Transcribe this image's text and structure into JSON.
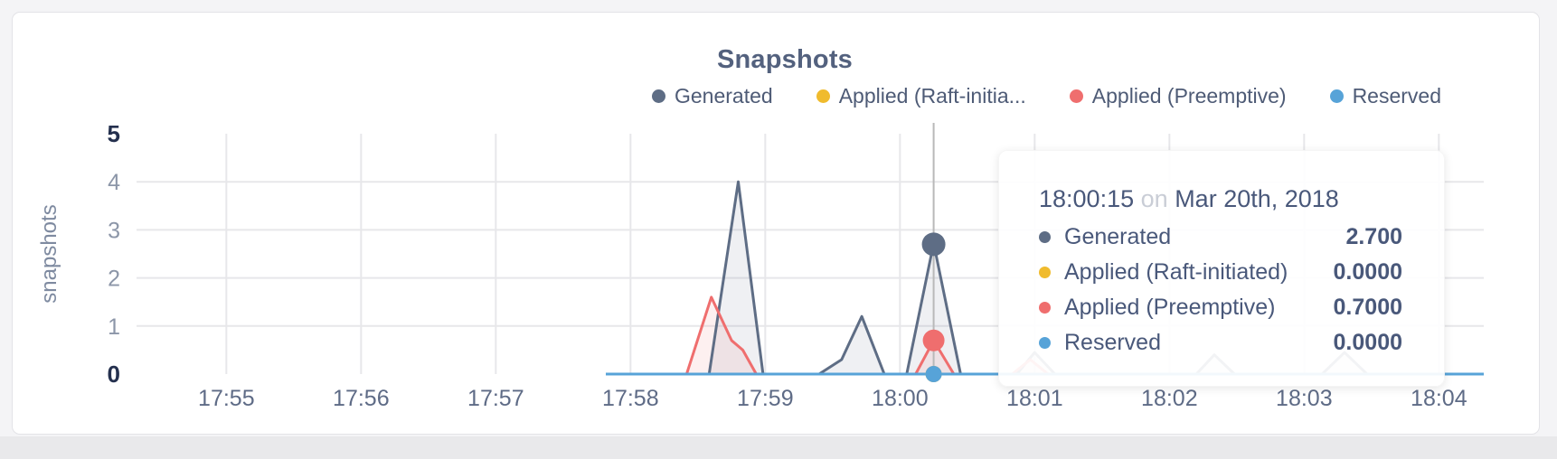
{
  "card": {
    "title": "Snapshots"
  },
  "y_axis": {
    "label": "snapshots",
    "ticks": [
      0,
      1,
      2,
      3,
      4,
      5
    ],
    "grid_values": [
      1,
      2,
      3,
      4
    ]
  },
  "x_axis": {
    "ticks": [
      "17:55",
      "17:56",
      "17:57",
      "17:58",
      "17:59",
      "18:00",
      "18:01",
      "18:02",
      "18:03",
      "18:04"
    ]
  },
  "legend": {
    "items": [
      {
        "label": "Generated",
        "color": "#5e6d85"
      },
      {
        "label": "Applied (Raft-initia...",
        "color": "#f0bb2d"
      },
      {
        "label": "Applied (Preemptive)",
        "color": "#ef6e6e"
      },
      {
        "label": "Reserved",
        "color": "#57a3d8"
      }
    ]
  },
  "tooltip": {
    "time": "18:00:15",
    "conjunction": "on",
    "date": "Mar 20th, 2018",
    "rows": [
      {
        "label": "Generated",
        "value": "2.700",
        "color": "#5e6d85"
      },
      {
        "label": "Applied (Raft-initiated)",
        "value": "0.0000",
        "color": "#f0bb2d"
      },
      {
        "label": "Applied (Preemptive)",
        "value": "0.7000",
        "color": "#ef6e6e"
      },
      {
        "label": "Reserved",
        "value": "0.0000",
        "color": "#57a3d8"
      }
    ]
  },
  "chart_data": {
    "type": "area",
    "title": "Snapshots",
    "ylabel": "snapshots",
    "ylim": [
      0,
      5
    ],
    "x_range": [
      "17:54:20",
      "18:04:20"
    ],
    "x_tick_times": [
      "17:55:00",
      "17:56:00",
      "17:57:00",
      "17:58:00",
      "17:59:00",
      "18:00:00",
      "18:01:00",
      "18:02:00",
      "18:03:00",
      "18:04:00"
    ],
    "grid": true,
    "legend_position": "top-right",
    "hover": {
      "time": "18:00:15",
      "date": "Mar 20th, 2018",
      "points": [
        {
          "series": "Generated",
          "value": 2.7
        },
        {
          "series": "Applied (Raft-initiated)",
          "value": 0.0
        },
        {
          "series": "Applied (Preemptive)",
          "value": 0.7
        },
        {
          "series": "Reserved",
          "value": 0.0
        }
      ]
    },
    "series": [
      {
        "name": "Generated",
        "color": "#5e6d85",
        "points": [
          [
            "17:57:49",
            0
          ],
          [
            "17:58:35",
            0
          ],
          [
            "17:58:48",
            4.0
          ],
          [
            "17:58:59",
            0
          ],
          [
            "17:59:24",
            0
          ],
          [
            "17:59:34",
            0.3
          ],
          [
            "17:59:43",
            1.2
          ],
          [
            "17:59:53",
            0
          ],
          [
            "18:00:03",
            0
          ],
          [
            "18:00:15",
            2.72
          ],
          [
            "18:00:27",
            0
          ],
          [
            "18:00:52",
            0
          ],
          [
            "18:01:00",
            0.45
          ],
          [
            "18:01:09",
            0
          ],
          [
            "18:02:12",
            0
          ],
          [
            "18:02:20",
            0.4
          ],
          [
            "18:02:29",
            0
          ],
          [
            "18:03:08",
            0
          ],
          [
            "18:03:18",
            0.45
          ],
          [
            "18:03:28",
            0
          ],
          [
            "18:04:20",
            0
          ]
        ]
      },
      {
        "name": "Applied (Raft-initiated)",
        "color": "#f0bb2d",
        "points": [
          [
            "17:57:49",
            0
          ],
          [
            "18:04:20",
            0
          ]
        ]
      },
      {
        "name": "Applied (Preemptive)",
        "color": "#ef6e6e",
        "points": [
          [
            "17:57:49",
            0
          ],
          [
            "17:58:25",
            0
          ],
          [
            "17:58:36",
            1.6
          ],
          [
            "17:58:45",
            0.7
          ],
          [
            "17:58:50",
            0.5
          ],
          [
            "17:58:56",
            0
          ],
          [
            "18:00:07",
            0
          ],
          [
            "18:00:15",
            0.7
          ],
          [
            "18:00:24",
            0
          ],
          [
            "18:00:50",
            0
          ],
          [
            "18:00:58",
            0.3
          ],
          [
            "18:01:06",
            0
          ],
          [
            "18:04:20",
            0
          ]
        ]
      },
      {
        "name": "Reserved",
        "color": "#57a3d8",
        "points": [
          [
            "17:57:49",
            0
          ],
          [
            "18:04:20",
            0
          ]
        ]
      }
    ]
  }
}
